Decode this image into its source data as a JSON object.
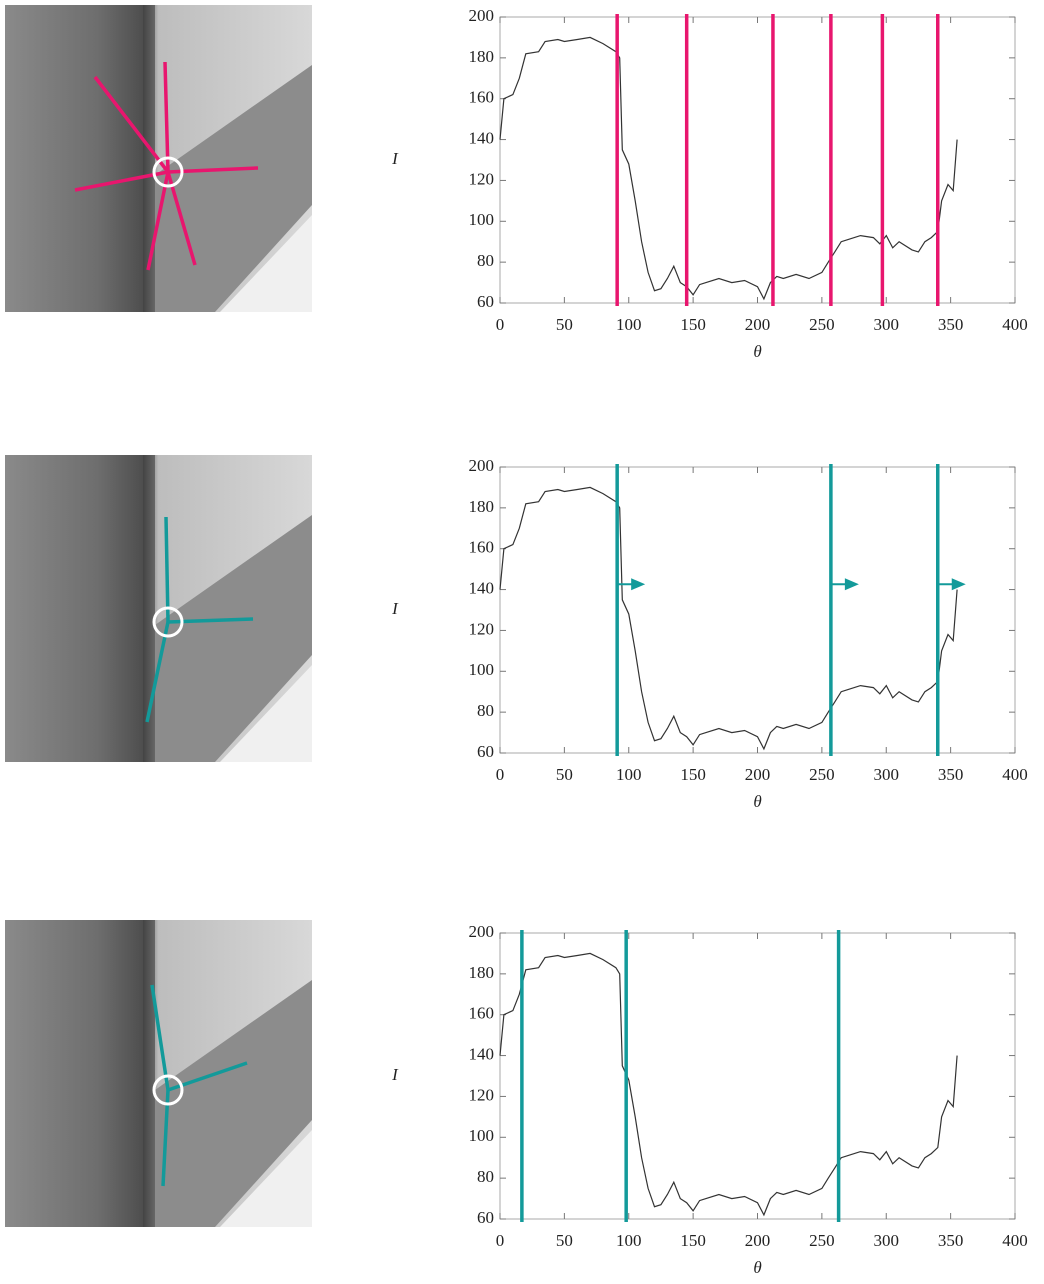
{
  "chart_data": [
    {
      "type": "line",
      "xlabel": "θ",
      "ylabel": "I",
      "line_color": "#333333",
      "x": [
        0,
        3,
        10,
        15,
        20,
        30,
        35,
        45,
        50,
        60,
        70,
        80,
        90,
        93,
        95,
        100,
        105,
        110,
        115,
        120,
        125,
        130,
        135,
        140,
        145,
        150,
        155,
        160,
        170,
        180,
        190,
        200,
        205,
        210,
        215,
        220,
        230,
        240,
        250,
        255,
        260,
        265,
        270,
        280,
        290,
        295,
        300,
        305,
        310,
        320,
        325,
        330,
        335,
        340,
        343,
        348,
        352,
        355
      ],
      "values": [
        140,
        160,
        162,
        170,
        182,
        183,
        188,
        189,
        188,
        189,
        190,
        187,
        183,
        180,
        135,
        128,
        110,
        90,
        75,
        66,
        67,
        72,
        78,
        70,
        68,
        64,
        69,
        70,
        72,
        70,
        71,
        68,
        62,
        70,
        73,
        72,
        74,
        72,
        75,
        80,
        85,
        90,
        91,
        93,
        92,
        89,
        93,
        87,
        90,
        86,
        85,
        90,
        92,
        95,
        110,
        118,
        115,
        140
      ],
      "markers": [
        91,
        145,
        212,
        257,
        297,
        340
      ],
      "marker_color": "#e8166e",
      "marker_arrows": false,
      "xlim": [
        0,
        400
      ],
      "ylim": [
        60,
        200
      ],
      "xticks": [
        0,
        50,
        100,
        150,
        200,
        250,
        300,
        350,
        400
      ],
      "yticks": [
        60,
        80,
        100,
        120,
        140,
        160,
        180,
        200
      ]
    },
    {
      "type": "line",
      "xlabel": "θ",
      "ylabel": "I",
      "line_color": "#333333",
      "x": [
        0,
        3,
        10,
        15,
        20,
        30,
        35,
        45,
        50,
        60,
        70,
        80,
        90,
        93,
        95,
        100,
        105,
        110,
        115,
        120,
        125,
        130,
        135,
        140,
        145,
        150,
        155,
        160,
        170,
        180,
        190,
        200,
        205,
        210,
        215,
        220,
        230,
        240,
        250,
        255,
        260,
        265,
        270,
        280,
        290,
        295,
        300,
        305,
        310,
        320,
        325,
        330,
        335,
        340,
        343,
        348,
        352,
        355
      ],
      "values": [
        140,
        160,
        162,
        170,
        182,
        183,
        188,
        189,
        188,
        189,
        190,
        187,
        183,
        180,
        135,
        128,
        110,
        90,
        75,
        66,
        67,
        72,
        78,
        70,
        68,
        64,
        69,
        70,
        72,
        70,
        71,
        68,
        62,
        70,
        73,
        72,
        74,
        72,
        75,
        80,
        85,
        90,
        91,
        93,
        92,
        89,
        93,
        87,
        90,
        86,
        85,
        90,
        92,
        95,
        110,
        118,
        115,
        140
      ],
      "markers": [
        91,
        257,
        340
      ],
      "marker_color": "#139a9a",
      "marker_arrows": true,
      "xlim": [
        0,
        400
      ],
      "ylim": [
        60,
        200
      ],
      "xticks": [
        0,
        50,
        100,
        150,
        200,
        250,
        300,
        350,
        400
      ],
      "yticks": [
        60,
        80,
        100,
        120,
        140,
        160,
        180,
        200
      ]
    },
    {
      "type": "line",
      "xlabel": "θ",
      "ylabel": "I",
      "line_color": "#333333",
      "x": [
        0,
        3,
        10,
        15,
        20,
        30,
        35,
        45,
        50,
        60,
        70,
        80,
        90,
        93,
        95,
        100,
        105,
        110,
        115,
        120,
        125,
        130,
        135,
        140,
        145,
        150,
        155,
        160,
        170,
        180,
        190,
        200,
        205,
        210,
        215,
        220,
        230,
        240,
        250,
        255,
        260,
        265,
        270,
        280,
        290,
        295,
        300,
        305,
        310,
        320,
        325,
        330,
        335,
        340,
        343,
        348,
        352,
        355
      ],
      "values": [
        140,
        160,
        162,
        170,
        182,
        183,
        188,
        189,
        188,
        189,
        190,
        187,
        183,
        180,
        135,
        128,
        110,
        90,
        75,
        66,
        67,
        72,
        78,
        70,
        68,
        64,
        69,
        70,
        72,
        70,
        71,
        68,
        62,
        70,
        73,
        72,
        74,
        72,
        75,
        80,
        85,
        90,
        91,
        93,
        92,
        89,
        93,
        87,
        90,
        86,
        85,
        90,
        92,
        95,
        110,
        118,
        115,
        140
      ],
      "markers": [
        17,
        98,
        263
      ],
      "marker_color": "#139a9a",
      "marker_arrows": false,
      "xlim": [
        0,
        400
      ],
      "ylim": [
        60,
        200
      ],
      "xticks": [
        0,
        50,
        100,
        150,
        200,
        250,
        300,
        350,
        400
      ],
      "yticks": [
        60,
        80,
        100,
        120,
        140,
        160,
        180,
        200
      ]
    }
  ]
}
